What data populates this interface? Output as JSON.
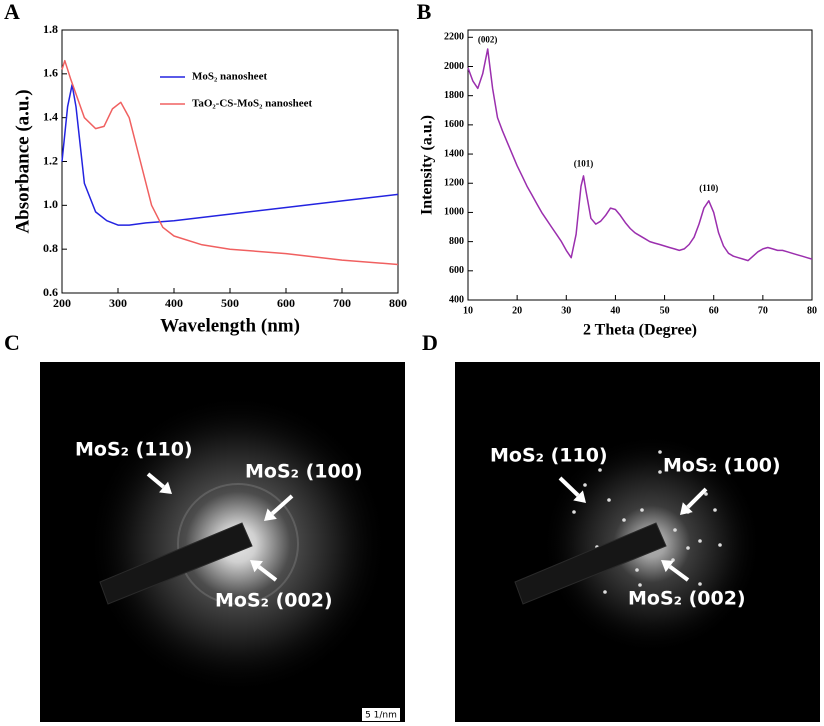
{
  "chart_data": [
    {
      "type": "line",
      "panel_label": "A",
      "xlabel": "Wavelength (nm)",
      "ylabel": "Absorbance (a.u.)",
      "xlim": [
        200,
        800
      ],
      "xticks": [
        200,
        300,
        400,
        500,
        600,
        700,
        800
      ],
      "ylim": [
        0.6,
        1.8
      ],
      "yticks": [
        0.6,
        0.8,
        {
          "value": 1,
          "label": "1.0"
        },
        1.2,
        1.4,
        1.6,
        1.8
      ],
      "grid": false,
      "legend": "upper right",
      "series": [
        {
          "name": "MoS₂ nanosheet",
          "color": "#2323e0",
          "x": [
            200,
            210,
            218,
            225,
            240,
            260,
            280,
            300,
            320,
            350,
            400,
            500,
            600,
            700,
            800
          ],
          "values": [
            1.2,
            1.45,
            1.55,
            1.45,
            1.1,
            0.97,
            0.93,
            0.91,
            0.91,
            0.92,
            0.93,
            0.96,
            0.99,
            1.02,
            1.05
          ]
        },
        {
          "name": "TaO₂-CS-MoS₂ nanosheet",
          "color": "#f06060",
          "x": [
            200,
            205,
            215,
            240,
            260,
            275,
            290,
            305,
            320,
            340,
            360,
            380,
            400,
            450,
            500,
            600,
            700,
            800
          ],
          "values": [
            1.62,
            1.66,
            1.58,
            1.4,
            1.35,
            1.36,
            1.44,
            1.47,
            1.4,
            1.2,
            1.0,
            0.9,
            0.86,
            0.82,
            0.8,
            0.78,
            0.75,
            0.73
          ]
        }
      ]
    },
    {
      "type": "line",
      "panel_label": "B",
      "xlabel": "2 Theta (Degree)",
      "ylabel": "Intensity (a.u.)",
      "xlim": [
        10,
        80
      ],
      "xticks": [
        10,
        20,
        30,
        40,
        50,
        60,
        70,
        80
      ],
      "ylim": [
        400,
        2250
      ],
      "yticks": [
        400,
        600,
        800,
        1000,
        1200,
        1400,
        1600,
        1800,
        2000,
        2200
      ],
      "grid": false,
      "annotations": [
        "(002)",
        "(101)",
        "(110)"
      ],
      "series": [
        {
          "name": null,
          "color": "#9b2fae",
          "x": [
            10,
            11,
            12,
            13,
            14,
            15,
            16,
            17,
            18,
            19,
            20,
            21,
            22,
            23,
            24,
            25,
            26,
            27,
            28,
            29,
            30,
            31,
            32,
            33,
            33.5,
            34,
            35,
            36,
            37,
            38,
            39,
            40,
            41,
            42,
            43,
            44,
            45,
            46,
            47,
            48,
            49,
            50,
            51,
            52,
            53,
            54,
            55,
            56,
            57,
            58,
            59,
            60,
            61,
            62,
            63,
            64,
            65,
            66,
            67,
            68,
            69,
            70,
            71,
            72,
            73,
            74,
            75,
            76,
            77,
            78,
            79,
            80
          ],
          "values": [
            1990,
            1900,
            1850,
            1950,
            2120,
            1850,
            1650,
            1560,
            1480,
            1400,
            1320,
            1250,
            1180,
            1120,
            1060,
            1000,
            950,
            900,
            850,
            800,
            740,
            690,
            850,
            1180,
            1250,
            1150,
            960,
            920,
            940,
            980,
            1030,
            1020,
            980,
            930,
            890,
            860,
            840,
            820,
            800,
            790,
            780,
            770,
            760,
            750,
            740,
            750,
            780,
            830,
            920,
            1030,
            1080,
            1000,
            860,
            770,
            720,
            700,
            690,
            680,
            670,
            700,
            730,
            750,
            760,
            750,
            740,
            740,
            730,
            720,
            710,
            700,
            690,
            680
          ]
        }
      ]
    }
  ],
  "images": [
    {
      "panel_label": "C",
      "annotations": [
        "MoS₂ (110)",
        "MoS₂ (100)",
        "MoS₂ (002)"
      ],
      "scale_bar": "5 1/nm"
    },
    {
      "panel_label": "D",
      "annotations": [
        "MoS₂ (110)",
        "MoS₂ (100)",
        "MoS₂ (002)"
      ]
    }
  ]
}
